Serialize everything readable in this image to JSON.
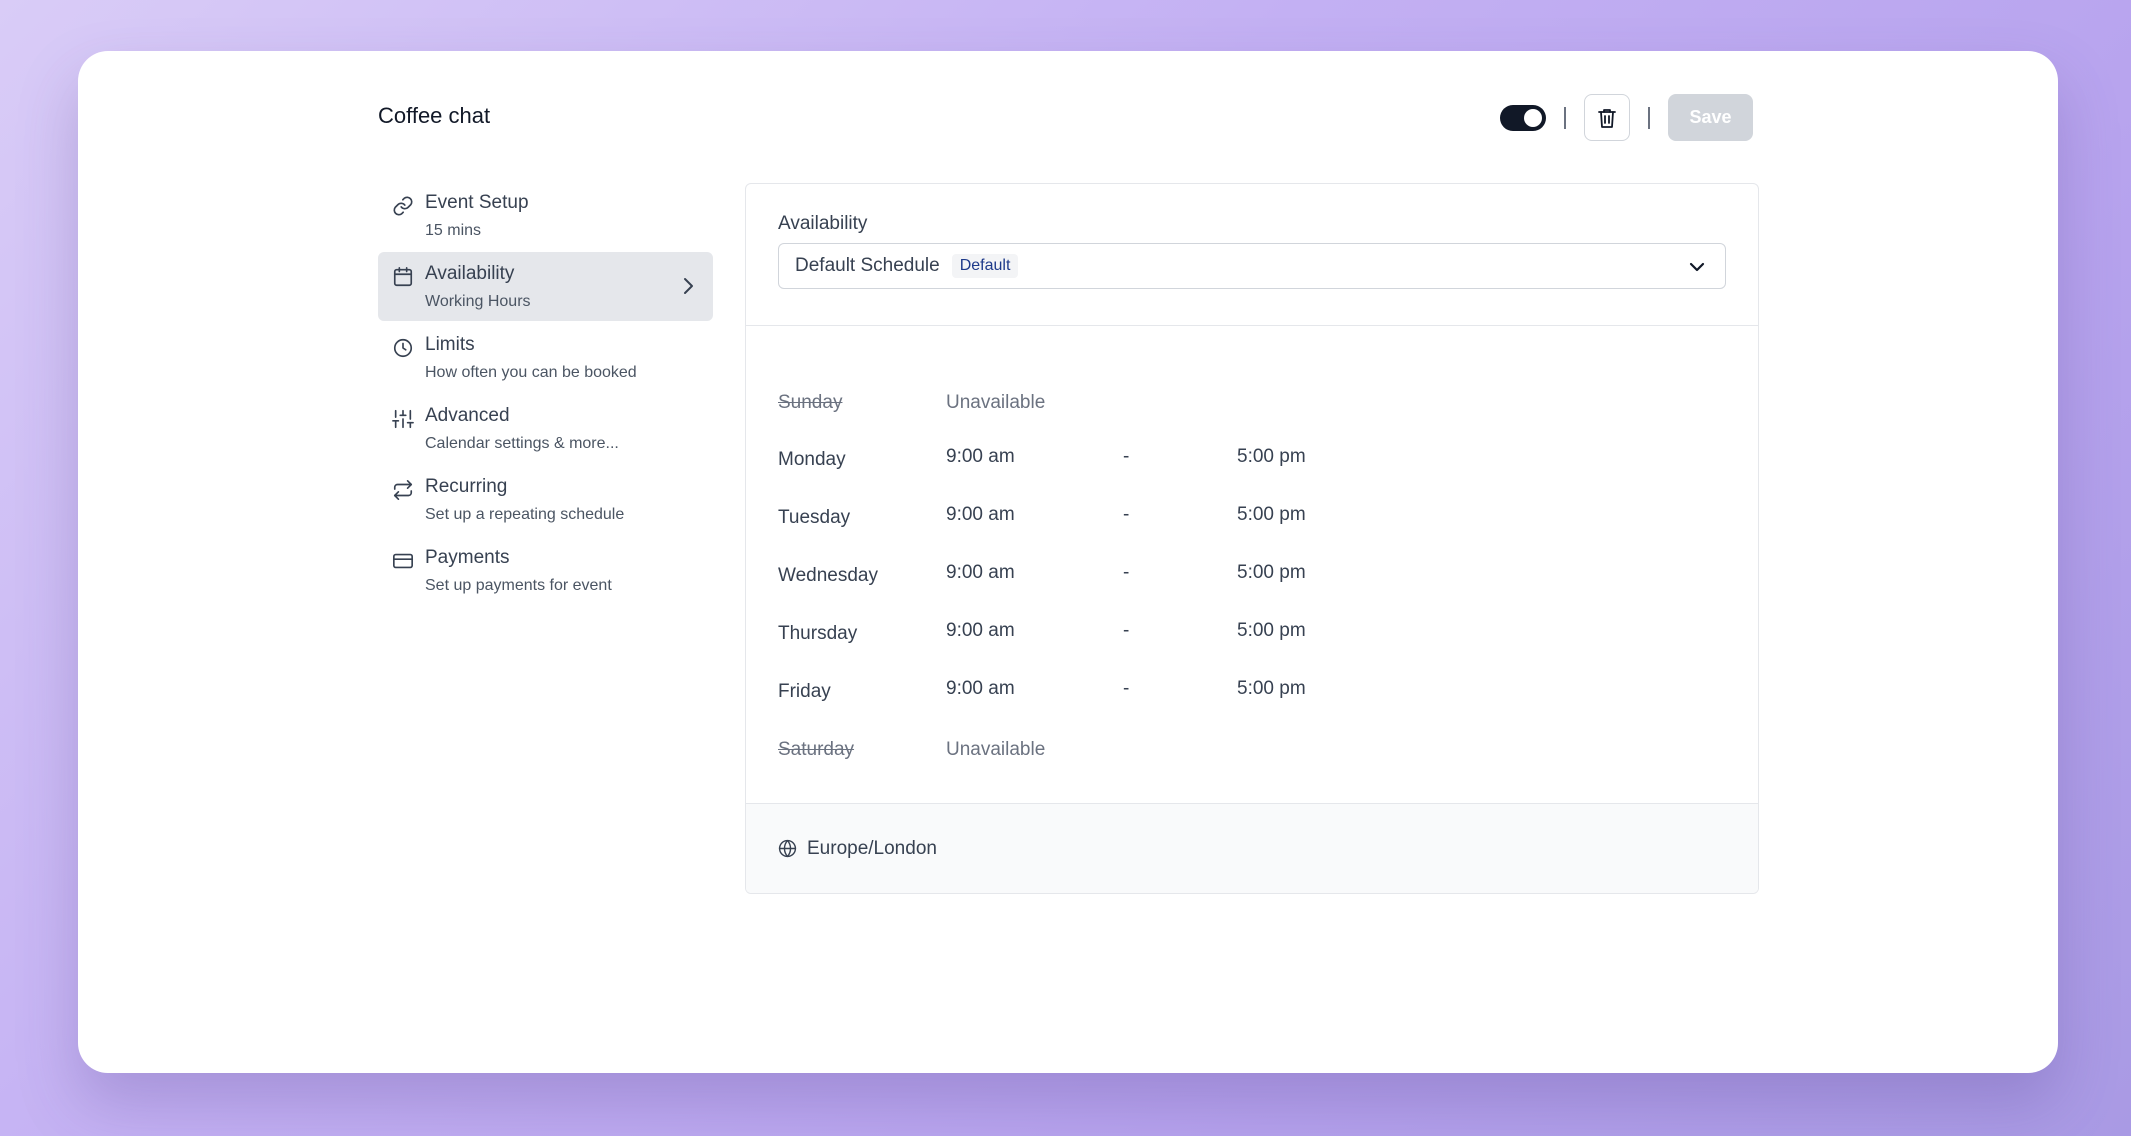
{
  "header": {
    "title": "Coffee chat",
    "enabled": true,
    "save_label": "Save"
  },
  "sidebar": {
    "items": [
      {
        "label": "Event Setup",
        "sub": "15 mins",
        "icon": "link-icon"
      },
      {
        "label": "Availability",
        "sub": "Working Hours",
        "icon": "calendar-icon",
        "active": true
      },
      {
        "label": "Limits",
        "sub": "How often you can be booked",
        "icon": "clock-icon"
      },
      {
        "label": "Advanced",
        "sub": "Calendar settings & more...",
        "icon": "sliders-icon"
      },
      {
        "label": "Recurring",
        "sub": "Set up a repeating schedule",
        "icon": "repeat-icon"
      },
      {
        "label": "Payments",
        "sub": "Set up payments for event",
        "icon": "credit-card-icon"
      }
    ]
  },
  "availability": {
    "label": "Availability",
    "schedule": "Default Schedule",
    "badge": "Default",
    "days": [
      {
        "day": "Sunday",
        "available": false,
        "text": "Unavailable"
      },
      {
        "day": "Monday",
        "available": true,
        "start": "9:00 am",
        "dash": "-",
        "end": "5:00 pm"
      },
      {
        "day": "Tuesday",
        "available": true,
        "start": "9:00 am",
        "dash": "-",
        "end": "5:00 pm"
      },
      {
        "day": "Wednesday",
        "available": true,
        "start": "9:00 am",
        "dash": "-",
        "end": "5:00 pm"
      },
      {
        "day": "Thursday",
        "available": true,
        "start": "9:00 am",
        "dash": "-",
        "end": "5:00 pm"
      },
      {
        "day": "Friday",
        "available": true,
        "start": "9:00 am",
        "dash": "-",
        "end": "5:00 pm"
      },
      {
        "day": "Saturday",
        "available": false,
        "text": "Unavailable"
      }
    ],
    "timezone": "Europe/London"
  }
}
